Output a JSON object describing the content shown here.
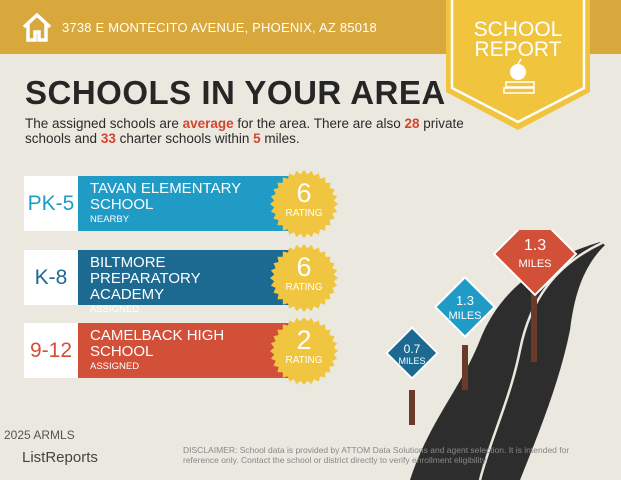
{
  "header": {
    "address": "3738 E MONTECITO AVENUE, PHOENIX, AZ 85018",
    "badge_line1": "SCHOOL",
    "badge_line2": "REPORT",
    "home_icon": "house-icon",
    "badge_icon": "apple-on-books-icon"
  },
  "title": "SCHOOLS IN YOUR AREA",
  "summary": {
    "p1": "The assigned schools are ",
    "rating": "average",
    "p2": " for the area. There are also ",
    "private": "28",
    "p3": " private schools and ",
    "charter": "33",
    "p4": " charter schools within ",
    "miles": "5",
    "p5": " miles."
  },
  "schools": [
    {
      "grades": "PK-5",
      "name": "TAVAN ELEMENTARY SCHOOL",
      "type": "NEARBY",
      "rating": "6",
      "rating_label": "RATING",
      "color": "#1f9bc6"
    },
    {
      "grades": "K-8",
      "name": "BILTMORE PREPARATORY ACADEMY",
      "type": "ASSIGNED",
      "rating": "6",
      "rating_label": "RATING",
      "color": "#1c6a92"
    },
    {
      "grades": "9-12",
      "name": "CAMELBACK HIGH SCHOOL",
      "type": "ASSIGNED",
      "rating": "2",
      "rating_label": "RATING",
      "color": "#d24f38"
    }
  ],
  "signs": [
    {
      "value": "0.7",
      "unit": "MILES",
      "color": "#1c6a92"
    },
    {
      "value": "1.3",
      "unit": "MILES",
      "color": "#1f9bc6"
    },
    {
      "value": "1.3",
      "unit": "MILES",
      "color": "#d24f38"
    }
  ],
  "footer": {
    "logo": "ListReports",
    "watermark": "2025 ARMLS",
    "disclaimer_label": "DISCLAIMER:",
    "disclaimer": " School data is provided by ATTOM Data Solutions and agent selection. It is intended for reference only. Contact the school or district directly to verify enrollment eligibility."
  }
}
